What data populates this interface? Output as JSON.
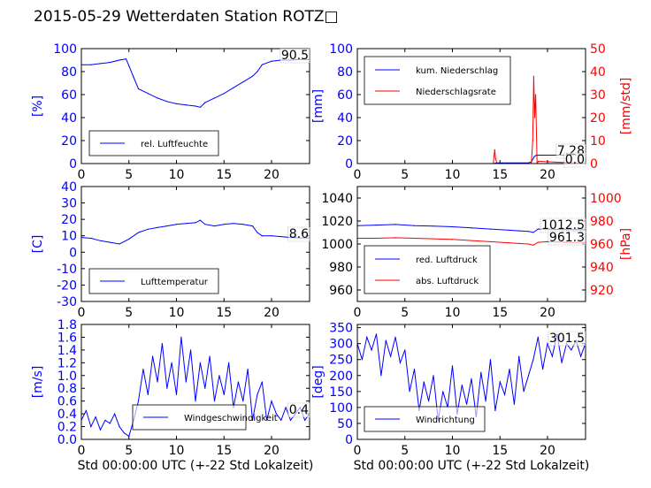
{
  "title": "2015-05-29 Wetterdaten Station ROTZ□",
  "colors": {
    "primary": "#0000ff",
    "secondary": "#ff0000",
    "axis": "#000000"
  },
  "chart_data": [
    {
      "type": "line",
      "panel": "humidity",
      "ylabel": "[%]",
      "xlim": [
        0,
        24
      ],
      "ylim": [
        0,
        100
      ],
      "xticks": [
        0,
        5,
        10,
        15,
        20
      ],
      "yticks": [
        0,
        20,
        40,
        60,
        80,
        100
      ],
      "legend": {
        "placement": "lower-left",
        "entries": [
          "rel. Luftfeuchte"
        ]
      },
      "annotation": "90.5",
      "series": [
        {
          "name": "rel. Luftfeuchte",
          "color": "#0000ff",
          "x": [
            0,
            1,
            2,
            3,
            4,
            4.7,
            5,
            5.5,
            6,
            7,
            8,
            9,
            10,
            11,
            12,
            12.5,
            13,
            14,
            15,
            16,
            17,
            18,
            18.5,
            19,
            20,
            21,
            22,
            23,
            24
          ],
          "y": [
            86,
            86,
            87,
            88,
            90,
            91,
            85,
            75,
            65,
            61,
            57,
            54,
            52,
            51,
            50,
            49,
            53,
            57,
            61,
            66,
            71,
            76,
            80,
            86,
            89,
            90,
            90,
            90.5,
            90.5
          ]
        }
      ]
    },
    {
      "type": "line",
      "panel": "precipitation",
      "ylabel": "[mm]",
      "y2label": "[mm/std]",
      "xlim": [
        0,
        24
      ],
      "ylim": [
        0,
        100
      ],
      "y2lim": [
        0,
        50
      ],
      "xticks": [
        0,
        5,
        10,
        15,
        20
      ],
      "yticks": [
        0,
        20,
        40,
        60,
        80,
        100
      ],
      "y2ticks": [
        0,
        10,
        20,
        30,
        40,
        50
      ],
      "legend": {
        "placement": "upper-left",
        "entries": [
          "kum. Niederschlag",
          "Niederschlagsrate"
        ]
      },
      "annotations": [
        "7.28",
        "0.0"
      ],
      "series": [
        {
          "name": "kum. Niederschlag",
          "color": "#0000ff",
          "axis": "left",
          "x": [
            0,
            14.4,
            14.6,
            18,
            18.3,
            18.6,
            18.8,
            19,
            24
          ],
          "y": [
            0,
            0,
            0.5,
            0.6,
            1.5,
            6,
            7.2,
            7.28,
            7.28
          ]
        },
        {
          "name": "Niederschlagsrate",
          "color": "#ff0000",
          "axis": "right",
          "x": [
            0,
            14.3,
            14.45,
            14.55,
            14.7,
            18.3,
            18.45,
            18.55,
            18.65,
            18.75,
            18.9,
            19.05,
            24
          ],
          "y": [
            0,
            0,
            6,
            2,
            0,
            0,
            10,
            38,
            20,
            30,
            0,
            1,
            0
          ]
        }
      ]
    },
    {
      "type": "line",
      "panel": "temperature",
      "ylabel": "[C]",
      "xlim": [
        0,
        24
      ],
      "ylim": [
        -30,
        40
      ],
      "xticks": [
        0,
        5,
        10,
        15,
        20
      ],
      "yticks": [
        -30,
        -20,
        -10,
        0,
        10,
        20,
        30,
        40
      ],
      "legend": {
        "placement": "lower-left",
        "entries": [
          "Lufttemperatur"
        ]
      },
      "annotation": "8.6",
      "series": [
        {
          "name": "Lufttemperatur",
          "color": "#0000ff",
          "x": [
            0,
            1,
            2,
            3,
            4,
            5,
            6,
            7,
            8,
            9,
            10,
            11,
            12,
            12.5,
            13,
            14,
            15,
            16,
            17,
            18,
            18.5,
            19,
            20,
            21,
            22,
            23,
            24
          ],
          "y": [
            9,
            8.5,
            7,
            6,
            5,
            8,
            12,
            14,
            15,
            16,
            17,
            17.5,
            18,
            19.5,
            17,
            16,
            17,
            17.5,
            17,
            16,
            12,
            10,
            10,
            9.5,
            9,
            8.7,
            8.6
          ]
        }
      ]
    },
    {
      "type": "line",
      "panel": "pressure",
      "y2label": "[hPa]",
      "xlim": [
        0,
        24
      ],
      "ylim": [
        950,
        1050
      ],
      "y2lim": [
        910,
        1010
      ],
      "xticks": [
        0,
        5,
        10,
        15,
        20
      ],
      "yticks": [
        960,
        980,
        1000,
        1020,
        1040
      ],
      "y2ticks": [
        920,
        940,
        960,
        980,
        1000
      ],
      "legend": {
        "placement": "lower-left",
        "entries": [
          "red. Luftdruck",
          "abs. Luftdruck"
        ]
      },
      "annotations": [
        "1012.5",
        "961.3"
      ],
      "series": [
        {
          "name": "red. Luftdruck",
          "color": "#0000ff",
          "axis": "left",
          "x": [
            0,
            2,
            4,
            6,
            8,
            10,
            12,
            14,
            16,
            17,
            18,
            18.5,
            19,
            20,
            22,
            24
          ],
          "y": [
            1016,
            1016.5,
            1017,
            1016,
            1015.5,
            1015,
            1014,
            1013,
            1012,
            1011.5,
            1011,
            1010,
            1013,
            1013,
            1012.5,
            1012.5
          ]
        },
        {
          "name": "abs. Luftdruck",
          "color": "#ff0000",
          "axis": "right",
          "x": [
            0,
            2,
            4,
            6,
            8,
            10,
            12,
            14,
            16,
            17,
            18,
            18.5,
            19,
            20,
            22,
            24
          ],
          "y": [
            965,
            965,
            965.5,
            965,
            964.5,
            964,
            963,
            962,
            961,
            960.5,
            960,
            959,
            961.5,
            962,
            961.5,
            961.3
          ]
        }
      ]
    },
    {
      "type": "line",
      "panel": "wind-speed",
      "ylabel": "[m/s]",
      "xlabel": "Std 00:00:00 UTC (+-22 Std Lokalzeit)",
      "xlim": [
        0,
        24
      ],
      "ylim": [
        0,
        1.8
      ],
      "xticks": [
        0,
        5,
        10,
        15,
        20
      ],
      "yticks": [
        0.0,
        0.2,
        0.4,
        0.6,
        0.8,
        1.0,
        1.2,
        1.4,
        1.6,
        1.8
      ],
      "legend": {
        "placement": "lower-center",
        "entries": [
          "Windgeschwindigkeit"
        ]
      },
      "annotation": "0.4",
      "series": [
        {
          "name": "Windgeschwindigkeit",
          "color": "#0000ff",
          "x": [
            0,
            0.5,
            1,
            1.5,
            2,
            2.5,
            3,
            3.5,
            4,
            4.5,
            5,
            5.5,
            6,
            6.5,
            7,
            7.5,
            8,
            8.5,
            9,
            9.5,
            10,
            10.5,
            11,
            11.5,
            12,
            12.5,
            13,
            13.5,
            14,
            14.5,
            15,
            15.5,
            16,
            16.5,
            17,
            17.5,
            18,
            18.5,
            19,
            19.5,
            20,
            20.5,
            21,
            21.5,
            22,
            22.5,
            23,
            23.5,
            24
          ],
          "y": [
            0.3,
            0.45,
            0.2,
            0.35,
            0.15,
            0.3,
            0.25,
            0.4,
            0.2,
            0.1,
            0.05,
            0.3,
            0.6,
            1.1,
            0.7,
            1.3,
            0.9,
            1.5,
            0.8,
            1.2,
            0.7,
            1.6,
            0.9,
            1.4,
            0.6,
            1.2,
            0.8,
            1.3,
            0.6,
            1.0,
            0.7,
            1.2,
            0.5,
            0.9,
            0.6,
            1.1,
            0.3,
            0.7,
            0.9,
            0.3,
            0.6,
            0.4,
            0.3,
            0.5,
            0.3,
            0.4,
            0.5,
            0.3,
            0.4
          ]
        }
      ]
    },
    {
      "type": "line",
      "panel": "wind-direction",
      "ylabel": "[deg]",
      "xlabel": "Std 00:00:00 UTC (+-22 Std Lokalzeit)",
      "xlim": [
        0,
        24
      ],
      "ylim": [
        0,
        360
      ],
      "xticks": [
        0,
        5,
        10,
        15,
        20
      ],
      "yticks": [
        0,
        50,
        100,
        150,
        200,
        250,
        300,
        350
      ],
      "legend": {
        "placement": "lower-left",
        "entries": [
          "Windrichtung"
        ]
      },
      "annotation": "301.5",
      "series": [
        {
          "name": "Windrichtung",
          "color": "#0000ff",
          "x": [
            0,
            0.5,
            1,
            1.5,
            2,
            2.5,
            3,
            3.5,
            4,
            4.5,
            5,
            5.5,
            6,
            6.5,
            7,
            7.5,
            8,
            8.5,
            9,
            9.5,
            10,
            10.5,
            11,
            11.5,
            12,
            12.5,
            13,
            13.5,
            14,
            14.5,
            15,
            15.5,
            16,
            16.5,
            17,
            17.5,
            18,
            18.5,
            19,
            19.5,
            20,
            20.5,
            21,
            21.5,
            22,
            22.5,
            23,
            23.5,
            24
          ],
          "y": [
            300,
            250,
            320,
            280,
            330,
            200,
            310,
            260,
            320,
            240,
            280,
            150,
            220,
            90,
            180,
            120,
            200,
            60,
            150,
            100,
            230,
            80,
            170,
            110,
            190,
            70,
            210,
            120,
            250,
            90,
            180,
            140,
            220,
            110,
            260,
            150,
            200,
            250,
            320,
            220,
            300,
            260,
            330,
            240,
            300,
            280,
            310,
            260,
            301.5
          ]
        }
      ]
    }
  ]
}
